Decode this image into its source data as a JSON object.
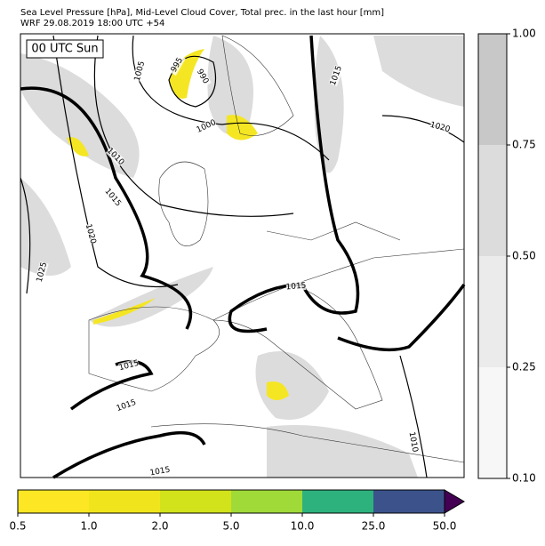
{
  "header": {
    "title": "Sea Level Pressure [hPa], Mid-Level Cloud Cover, Total prec. in the last hour [mm]",
    "subtitle": "WRF 29.08.2019 18:00 UTC +54"
  },
  "map": {
    "time_label": "00 UTC Sun",
    "isobar_labels": [
      "995",
      "990",
      "1005",
      "1000",
      "1010",
      "1015",
      "1020",
      "1025",
      "1015",
      "1020",
      "1015",
      "1015",
      "1015",
      "1015",
      "1010"
    ]
  },
  "cloud_colorbar": {
    "colors": [
      "#f7f7f7",
      "#ebebeb",
      "#dcdcdc",
      "#c8c8c8"
    ],
    "ticks": [
      {
        "value": 0.1,
        "label": "0.10"
      },
      {
        "value": 0.25,
        "label": "0.25"
      },
      {
        "value": 0.5,
        "label": "0.50"
      },
      {
        "value": 0.75,
        "label": "0.75"
      },
      {
        "value": 1,
        "label": "1.00"
      }
    ]
  },
  "precip_colorbar": {
    "colors": [
      "#fde725",
      "#f0e51d",
      "#d2e21b",
      "#a0da39",
      "#2db27d",
      "#3b528b",
      "#440154"
    ],
    "ticks": [
      {
        "value": 0.5,
        "label": "0.5"
      },
      {
        "value": 1,
        "label": "1.0"
      },
      {
        "value": 2,
        "label": "2.0"
      },
      {
        "value": 5,
        "label": "5.0"
      },
      {
        "value": 10,
        "label": "10.0"
      },
      {
        "value": 25,
        "label": "25.0"
      },
      {
        "value": 50,
        "label": "50.0"
      }
    ]
  }
}
